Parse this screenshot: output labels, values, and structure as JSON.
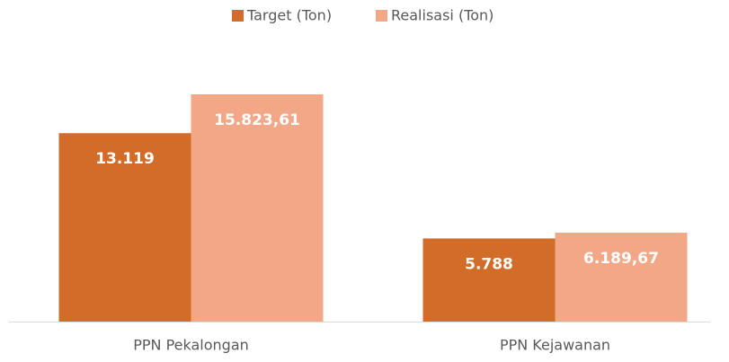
{
  "chart_data": {
    "type": "bar",
    "categories": [
      "PPN Pekalongan",
      "PPN Kejawanan"
    ],
    "series": [
      {
        "name": "Target (Ton)",
        "color": "#d36c28",
        "values": [
          13119,
          5788
        ],
        "value_labels": [
          "13.119",
          "5.788"
        ]
      },
      {
        "name": "Realisasi (Ton)",
        "color": "#f2a787",
        "values": [
          15823.61,
          6189.67
        ],
        "value_labels": [
          "15.823,61",
          "6.189,67"
        ]
      }
    ],
    "legend": "top"
  }
}
